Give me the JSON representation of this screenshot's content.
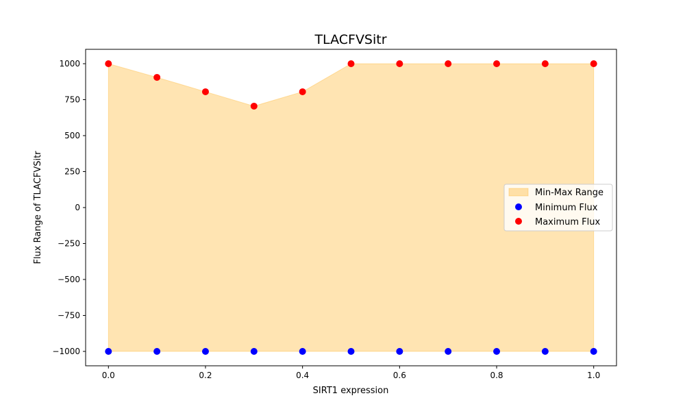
{
  "chart_data": {
    "type": "area",
    "title": "TLACFVSitr",
    "xlabel": "SIRT1 expression",
    "ylabel": "Flux Range of TLACFVSitr",
    "xlim": [
      -0.047,
      1.047
    ],
    "ylim": [
      -1100,
      1100
    ],
    "x_ticks": [
      "0.0",
      "0.2",
      "0.4",
      "0.6",
      "0.8",
      "1.0"
    ],
    "y_ticks": [
      "1000",
      "750",
      "500",
      "250",
      "0",
      "−250",
      "−500",
      "−750",
      "−1000"
    ],
    "x": [
      0.0,
      0.1,
      0.2,
      0.3,
      0.4,
      0.5,
      0.6,
      0.7,
      0.8,
      0.9,
      1.0
    ],
    "series": [
      {
        "name": "Minimum Flux",
        "color": "#0000ff",
        "values": [
          -1000,
          -1000,
          -1000,
          -1000,
          -1000,
          -1000,
          -1000,
          -1000,
          -1000,
          -1000,
          -1000
        ]
      },
      {
        "name": "Maximum Flux",
        "color": "#ff0000",
        "values": [
          1000,
          905,
          805,
          705,
          805,
          1000,
          1000,
          1000,
          1000,
          1000,
          1000
        ]
      }
    ],
    "fill": {
      "name": "Min-Max Range",
      "color": "#ffa500"
    },
    "legend": {
      "position": "center-right"
    },
    "grid": false
  }
}
